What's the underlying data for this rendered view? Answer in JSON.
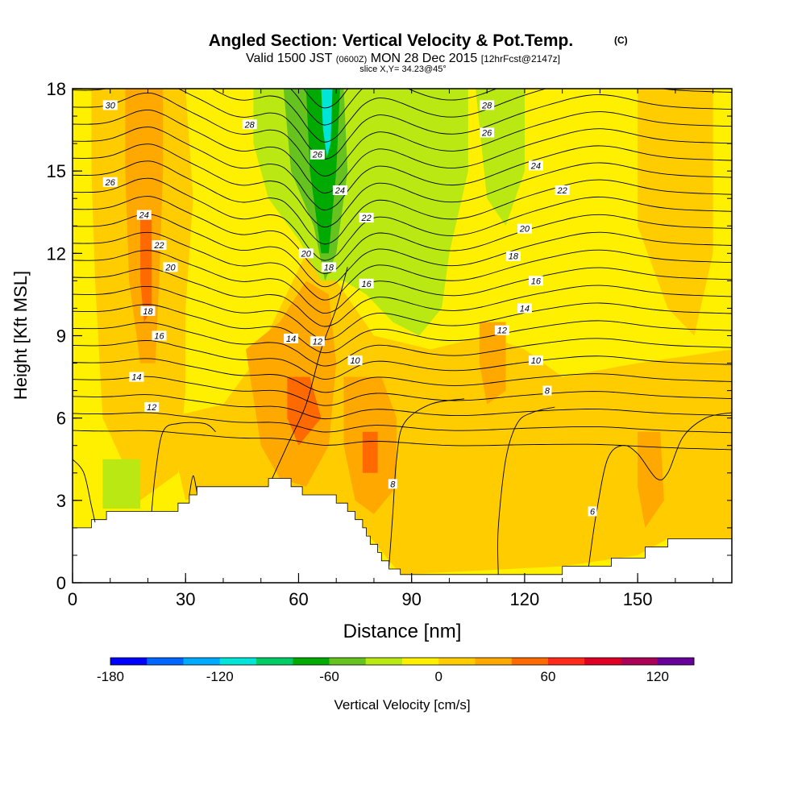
{
  "chart_data": {
    "type": "heatmap",
    "title": "Angled Section: Vertical Velocity & Pot.Temp.",
    "title_unit": "(C)",
    "subtitle": {
      "valid_prefix": "Valid 1500 JST",
      "valid_utc": "(0600Z)",
      "valid_date": "MON 28 Dec 2015",
      "forecast": "[12hrFcst@2147z]",
      "slice": "slice X,Y= 34.23@45°"
    },
    "xlabel": "Distance [nm]",
    "ylabel": "Height [Kft MSL]",
    "xlim": [
      0,
      175
    ],
    "ylim": [
      0,
      18
    ],
    "x_ticks": [
      0,
      30,
      60,
      90,
      120,
      150
    ],
    "y_ticks": [
      0,
      3,
      6,
      9,
      12,
      15,
      18
    ],
    "x_minor_step": 10,
    "y_minor_step": 1,
    "colorbar": {
      "label": "Vertical Velocity [cm/s]",
      "min": -180,
      "step": 20,
      "tick_labels": [
        -180,
        -120,
        -60,
        0,
        60,
        120
      ],
      "colors": [
        "#0000ff",
        "#0066ff",
        "#00aaff",
        "#00e5d8",
        "#00cc66",
        "#00aa00",
        "#66c21e",
        "#b9e812",
        "#fff000",
        "#ffcc00",
        "#ffa800",
        "#ff6a00",
        "#ff2a1a",
        "#dd0022",
        "#aa0055",
        "#660099"
      ]
    },
    "field_colors": {
      "yellow": "#fff000",
      "light_orange": "#ffcc00",
      "orange": "#ffa800",
      "red_orange": "#ff6a00",
      "lime": "#b9e812",
      "green": "#66c21e",
      "dark_green": "#00aa00",
      "cyan": "#00e5d8"
    },
    "terrain_kft": [
      [
        0,
        2.0
      ],
      [
        5,
        2.0
      ],
      [
        5,
        2.3
      ],
      [
        9,
        2.3
      ],
      [
        9,
        2.6
      ],
      [
        15,
        2.6
      ],
      [
        28,
        2.6
      ],
      [
        28,
        2.9
      ],
      [
        31,
        2.9
      ],
      [
        31,
        3.2
      ],
      [
        33,
        3.2
      ],
      [
        33,
        3.5
      ],
      [
        52,
        3.5
      ],
      [
        52,
        3.8
      ],
      [
        58,
        3.8
      ],
      [
        58,
        3.5
      ],
      [
        61,
        3.5
      ],
      [
        61,
        3.2
      ],
      [
        70,
        3.2
      ],
      [
        70,
        2.9
      ],
      [
        73,
        2.9
      ],
      [
        73,
        2.6
      ],
      [
        75,
        2.6
      ],
      [
        75,
        2.3
      ],
      [
        77,
        2.3
      ],
      [
        77,
        2.0
      ],
      [
        78,
        2.0
      ],
      [
        78,
        1.7
      ],
      [
        79,
        1.7
      ],
      [
        79,
        1.4
      ],
      [
        81,
        1.4
      ],
      [
        81,
        1.1
      ],
      [
        82,
        1.1
      ],
      [
        82,
        0.8
      ],
      [
        84,
        0.8
      ],
      [
        84,
        0.5
      ],
      [
        87,
        0.5
      ],
      [
        87,
        0.3
      ],
      [
        130,
        0.3
      ],
      [
        130,
        0.6
      ],
      [
        143,
        0.6
      ],
      [
        143,
        0.9
      ],
      [
        152,
        0.9
      ],
      [
        152,
        1.3
      ],
      [
        158,
        1.3
      ],
      [
        158,
        1.6
      ],
      [
        175,
        1.6
      ]
    ],
    "theta_labels": [
      {
        "text": "30",
        "x": 10,
        "y": 17.4
      },
      {
        "text": "28",
        "x": 47,
        "y": 16.7
      },
      {
        "text": "26",
        "x": 65,
        "y": 15.6
      },
      {
        "text": "24",
        "x": 71,
        "y": 14.3
      },
      {
        "text": "22",
        "x": 78,
        "y": 13.3
      },
      {
        "text": "20",
        "x": 62,
        "y": 12.0
      },
      {
        "text": "18",
        "x": 68,
        "y": 11.5
      },
      {
        "text": "16",
        "x": 78,
        "y": 10.9
      },
      {
        "text": "14",
        "x": 58,
        "y": 8.9
      },
      {
        "text": "12",
        "x": 65,
        "y": 8.8
      },
      {
        "text": "10",
        "x": 75,
        "y": 8.1
      },
      {
        "text": "8",
        "x": 85,
        "y": 3.6
      },
      {
        "text": "26",
        "x": 10,
        "y": 14.6
      },
      {
        "text": "24",
        "x": 19,
        "y": 13.4
      },
      {
        "text": "22",
        "x": 23,
        "y": 12.3
      },
      {
        "text": "20",
        "x": 26,
        "y": 11.5
      },
      {
        "text": "18",
        "x": 20,
        "y": 9.9
      },
      {
        "text": "16",
        "x": 23,
        "y": 9.0
      },
      {
        "text": "14",
        "x": 17,
        "y": 7.5
      },
      {
        "text": "12",
        "x": 21,
        "y": 6.4
      },
      {
        "text": "28",
        "x": 110,
        "y": 17.4
      },
      {
        "text": "26",
        "x": 110,
        "y": 16.4
      },
      {
        "text": "24",
        "x": 123,
        "y": 15.2
      },
      {
        "text": "22",
        "x": 130,
        "y": 14.3
      },
      {
        "text": "20",
        "x": 120,
        "y": 12.9
      },
      {
        "text": "18",
        "x": 117,
        "y": 11.9
      },
      {
        "text": "16",
        "x": 123,
        "y": 11.0
      },
      {
        "text": "14",
        "x": 120,
        "y": 10.0
      },
      {
        "text": "12",
        "x": 114,
        "y": 9.2
      },
      {
        "text": "10",
        "x": 123,
        "y": 8.1
      },
      {
        "text": "8",
        "x": 126,
        "y": 7.0
      },
      {
        "text": "6",
        "x": 138,
        "y": 2.6
      }
    ]
  }
}
